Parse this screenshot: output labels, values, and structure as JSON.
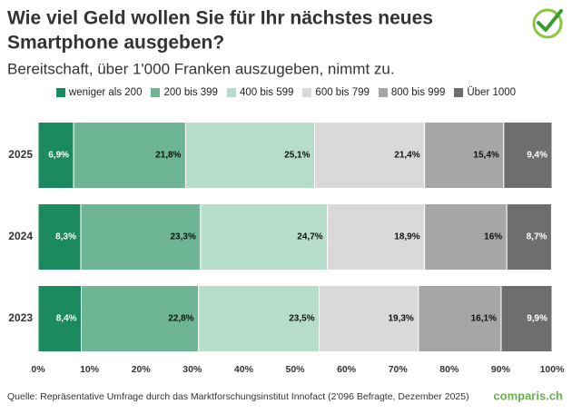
{
  "chart_data": {
    "type": "stacked_bar_horizontal",
    "title": [
      "Wie viel Geld wollen Sie für Ihr nächstes neues",
      "Smartphone ausgeben?"
    ],
    "subtitle": "Bereitschaft, über 1'000 Franken auszugeben, nimmt zu.",
    "categories": [
      "2025",
      "2024",
      "2023"
    ],
    "series": [
      {
        "name": "weniger als 200",
        "color": "#1b8a5f",
        "values": [
          6.9,
          8.3,
          8.4
        ],
        "value_labels": [
          "6,9%",
          "8,3%",
          "8,4%"
        ]
      },
      {
        "name": "200 bis 399",
        "color": "#6db594",
        "values": [
          21.8,
          23.3,
          22.8
        ],
        "value_labels": [
          "21,8%",
          "23,3%",
          "22,8%"
        ]
      },
      {
        "name": "400 bis 599",
        "color": "#b6dccb",
        "values": [
          25.1,
          24.7,
          23.5
        ],
        "value_labels": [
          "25,1%",
          "24,7%",
          "23,5%"
        ]
      },
      {
        "name": "600 bis 799",
        "color": "#d9d9d9",
        "values": [
          21.4,
          18.9,
          19.3
        ],
        "value_labels": [
          "21,4%",
          "18,9%",
          "19,3%"
        ]
      },
      {
        "name": "800 bis 999",
        "color": "#a6a6a6",
        "values": [
          15.4,
          16,
          16.1
        ],
        "value_labels": [
          "15,4%",
          "16%",
          "16,1%"
        ]
      },
      {
        "name": "Über 1000",
        "color": "#6e6e6e",
        "values": [
          9.4,
          8.7,
          9.9
        ],
        "value_labels": [
          "9,4%",
          "8,7%",
          "9,9%"
        ]
      }
    ],
    "xlim": [
      0,
      100
    ],
    "xticks": [
      {
        "value": 0,
        "label": "0%"
      },
      {
        "value": 10,
        "label": "10%"
      },
      {
        "value": 20,
        "label": "20%"
      },
      {
        "value": 30,
        "label": "30%"
      },
      {
        "value": 40,
        "label": "40%"
      },
      {
        "value": 50,
        "label": "50%"
      },
      {
        "value": 60,
        "label": "60%"
      },
      {
        "value": 70,
        "label": "70%"
      },
      {
        "value": 80,
        "label": "80%"
      },
      {
        "value": 90,
        "label": "90%"
      },
      {
        "value": 100,
        "label": "100%"
      }
    ],
    "grid": false,
    "legend": "top",
    "source": "Quelle: Repräsentative Umfrage durch das Marktforschungsinstitut Innofact (2'096 Befragte, Dezember 2025)",
    "logo": "comparis.ch"
  }
}
